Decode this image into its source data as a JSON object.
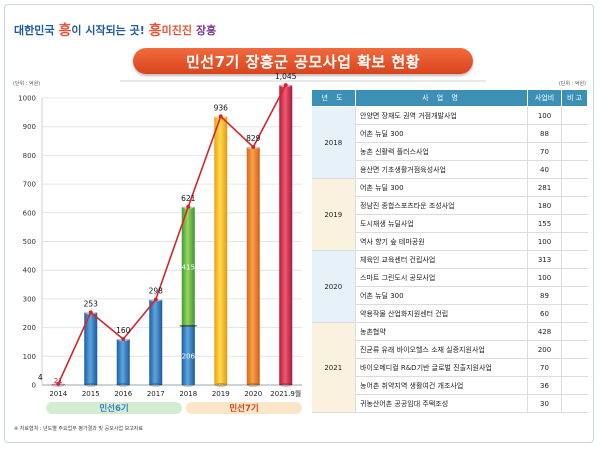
{
  "brand": {
    "part1": "대한민국",
    "heung1": "흥",
    "part2": "이 시작되는 곳!",
    "heung2": "흥",
    "part3": "미진진",
    "part4": "장흥"
  },
  "title": "민선7기 장흥군 공모사업 확보 현황",
  "unit_left": "(단위 : 억원)",
  "unit_right": "(단위 : 억원)",
  "colors": {
    "title": "#e5532c",
    "line": "#d8242b",
    "term6": "#3a7fc4",
    "term7": "#e8852a",
    "header": "#3c8fb5"
  },
  "chart_data": {
    "type": "bar",
    "categories": [
      "2014",
      "2015",
      "2016",
      "2017",
      "2018",
      "2019",
      "2020",
      "2021.9월"
    ],
    "values": [
      4,
      253,
      160,
      298,
      621,
      936,
      829,
      1045
    ],
    "stack_2014": [
      21
    ],
    "stack_2018": [
      206,
      415
    ],
    "ylim": [
      0,
      1000
    ],
    "yticks": [
      "0",
      "100",
      "200",
      "300",
      "400",
      "500",
      "600",
      "700",
      "800",
      "900",
      "1000"
    ],
    "value_labels": [
      "4",
      "253",
      "160",
      "298",
      "621",
      "936",
      "829",
      "1,045"
    ],
    "stack_labels": [
      "21",
      "206",
      "415"
    ],
    "line_overlay": true,
    "terms": [
      {
        "label": "민선6기"
      },
      {
        "label": "민선7기"
      }
    ]
  },
  "table": {
    "headers": [
      "년 도",
      "사 업 명",
      "사업비",
      "비 고"
    ],
    "groups": [
      {
        "year": "2018",
        "rows": [
          {
            "name": "안양면 장재도 권역 거점개발사업",
            "amount": "100"
          },
          {
            "name": "어촌 뉴딜 300",
            "amount": "88"
          },
          {
            "name": "농촌 신활력 플러스사업",
            "amount": "70"
          },
          {
            "name": "용산면 기초생활거점육성사업",
            "amount": "40"
          }
        ]
      },
      {
        "year": "2019",
        "rows": [
          {
            "name": "어촌 뉴딜 300",
            "amount": "281"
          },
          {
            "name": "정남진 종합스포츠타운 조성사업",
            "amount": "180"
          },
          {
            "name": "도시재생 뉴딜사업",
            "amount": "155"
          },
          {
            "name": "역사 향기 숲 테마공원",
            "amount": "100"
          }
        ]
      },
      {
        "year": "2020",
        "rows": [
          {
            "name": "체육인 교육센터 건립사업",
            "amount": "313"
          },
          {
            "name": "스마트 그린도시 공모사업",
            "amount": "100"
          },
          {
            "name": "어촌 뉴딜 300",
            "amount": "89"
          },
          {
            "name": "약용작물 산업화지원센터 건립",
            "amount": "60"
          }
        ]
      },
      {
        "year": "2021",
        "rows": [
          {
            "name": "농촌협약",
            "amount": "428"
          },
          {
            "name": "진균류 유래 바이오헬스 소재 실증지원사업",
            "amount": "200"
          },
          {
            "name": "바이오메디컬 R&D기반 글로벌 진출지원사업",
            "amount": "70"
          },
          {
            "name": "농어촌 취약지역 생활여건 개조사업",
            "amount": "36"
          },
          {
            "name": "귀농산어촌 공공임대 주택조성",
            "amount": "30"
          }
        ]
      }
    ]
  },
  "footnote": "※ 자료협쳐 : 년도별 주요업무 평가결과 및 공모사업 보고자료"
}
